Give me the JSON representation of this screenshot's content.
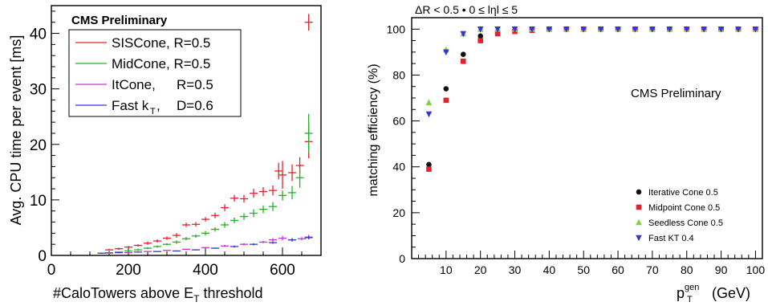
{
  "chart_data": [
    {
      "type": "scatter",
      "title": "",
      "xlabel": "#CaloTowers above E_T threshold",
      "xlabel_parts": [
        "#CaloTowers above E",
        "T",
        " threshold"
      ],
      "ylabel": "Avg. CPU time per event [ms]",
      "xlim": [
        0,
        700
      ],
      "ylim": [
        0,
        45
      ],
      "xticks": [
        "0",
        "200",
        "400",
        "600"
      ],
      "yticks": [
        "0",
        "10",
        "20",
        "30",
        "40"
      ],
      "grid": false,
      "legend_position": "top-left",
      "legend_header": "CMS Preliminary",
      "legend_entries": [
        {
          "label": "SISCone, R=0.5",
          "color": "#e8202a"
        },
        {
          "label": "MidCone, R=0.5",
          "color": "#22b122"
        },
        {
          "label": "ItCone, R=0.5",
          "label_parts": [
            "ItCone,",
            "R=0.5"
          ],
          "color": "#cc33cc"
        },
        {
          "label": "Fast kT, D=0.6",
          "label_parts": [
            "Fast k",
            "T",
            ",",
            "D=0.6"
          ],
          "color": "#3a33d6"
        }
      ],
      "series": [
        {
          "name": "SISCone, R=0.5",
          "color": "#e8202a",
          "x": [
            150,
            175,
            200,
            225,
            250,
            275,
            300,
            325,
            350,
            375,
            400,
            425,
            450,
            475,
            500,
            525,
            550,
            575,
            590,
            600,
            625,
            645,
            668
          ],
          "y": [
            1.0,
            1.2,
            1.5,
            1.8,
            2.2,
            2.6,
            3.1,
            3.6,
            5.5,
            5.6,
            6.5,
            7.2,
            8.6,
            10.3,
            10.2,
            11.2,
            11.5,
            11.7,
            15.2,
            14.5,
            14.9,
            16.2,
            20.5
          ],
          "yerr": [
            0.2,
            0.2,
            0.2,
            0.2,
            0.3,
            0.3,
            0.3,
            0.4,
            0.4,
            0.4,
            0.4,
            0.5,
            0.6,
            0.6,
            0.7,
            0.8,
            0.8,
            0.9,
            1.5,
            2.5,
            1.5,
            1.5,
            3.0
          ]
        },
        {
          "name": "MidCone, R=0.5",
          "color": "#22b122",
          "x": [
            150,
            175,
            200,
            225,
            250,
            275,
            300,
            325,
            350,
            375,
            400,
            425,
            450,
            475,
            500,
            525,
            550,
            575,
            600,
            625,
            645,
            668
          ],
          "y": [
            0.5,
            0.6,
            0.8,
            1.0,
            1.3,
            1.6,
            2.0,
            2.4,
            3.0,
            3.5,
            4.0,
            4.7,
            5.5,
            6.3,
            7.0,
            7.6,
            8.3,
            8.8,
            10.8,
            11.3,
            14.0,
            22.0
          ],
          "yerr": [
            0.1,
            0.1,
            0.1,
            0.2,
            0.2,
            0.2,
            0.2,
            0.3,
            0.3,
            0.3,
            0.4,
            0.4,
            0.5,
            0.5,
            0.6,
            0.7,
            0.7,
            0.8,
            0.9,
            1.2,
            1.8,
            3.5
          ]
        },
        {
          "name": "ItCone, R=0.5",
          "color": "#cc33cc",
          "x": [
            150,
            200,
            250,
            300,
            350,
            400,
            450,
            500,
            550,
            575,
            600,
            625,
            650,
            668
          ],
          "y": [
            0.4,
            0.5,
            0.7,
            0.9,
            1.1,
            1.4,
            1.7,
            2.0,
            2.4,
            2.8,
            3.1,
            2.8,
            3.0,
            3.3
          ],
          "yerr": [
            0.1,
            0.1,
            0.1,
            0.1,
            0.1,
            0.1,
            0.2,
            0.2,
            0.2,
            0.3,
            0.4,
            0.3,
            0.3,
            0.4
          ]
        },
        {
          "name": "Fast kT, D=0.6",
          "color": "#3a33d6",
          "x": [
            130,
            175,
            225,
            275,
            325,
            375,
            425,
            475,
            525,
            575,
            625,
            668
          ],
          "y": [
            0.4,
            0.5,
            0.6,
            0.7,
            0.8,
            1.0,
            1.3,
            1.6,
            2.0,
            2.3,
            2.8,
            3.2
          ],
          "yerr": [
            0.1,
            0.1,
            0.1,
            0.1,
            0.1,
            0.1,
            0.1,
            0.2,
            0.2,
            0.2,
            0.3,
            0.3
          ]
        }
      ],
      "extra_point": {
        "x": 668,
        "y": 42.0,
        "yerr": 1.5,
        "color": "#e8202a"
      }
    },
    {
      "type": "scatter",
      "title": "ΔR < 0.5 • 0 ≤ lηl ≤ 5",
      "xlabel": "p_T^gen (GeV)",
      "xlabel_parts": [
        "p",
        "gen",
        "T",
        " (GeV)"
      ],
      "ylabel": "matching efficiency (%)",
      "xlim": [
        0,
        102
      ],
      "ylim": [
        0,
        105
      ],
      "xticks": [
        "10",
        "20",
        "30",
        "40",
        "50",
        "60",
        "70",
        "80",
        "90",
        "100"
      ],
      "yticks": [
        "0",
        "20",
        "40",
        "60",
        "80",
        "100"
      ],
      "grid": false,
      "legend_position": "bottom-right",
      "annotation": "CMS Preliminary",
      "x_values": [
        5,
        10,
        15,
        20,
        25,
        30,
        35,
        40,
        45,
        50,
        55,
        60,
        65,
        70,
        75,
        80,
        85,
        90,
        95,
        100
      ],
      "series": [
        {
          "name": "Iterative Cone 0.5",
          "color": "#111111",
          "marker": "circle",
          "y": [
            41,
            74,
            89,
            97,
            99,
            99.5,
            100,
            100,
            100,
            100,
            100,
            100,
            100,
            100,
            100,
            100,
            100,
            100,
            100,
            100
          ]
        },
        {
          "name": "Midpoint Cone 0.5",
          "color": "#e8202a",
          "marker": "square",
          "y": [
            39,
            69,
            86,
            95,
            98,
            99,
            99.5,
            100,
            100,
            100,
            100,
            100,
            100,
            100,
            100,
            100,
            100,
            100,
            100,
            100
          ]
        },
        {
          "name": "Seedless Cone 0.5",
          "color": "#7fd43a",
          "marker": "triangle-up",
          "y": [
            68,
            91,
            98,
            100,
            100,
            100,
            100,
            100,
            100,
            100,
            100,
            100,
            100,
            100,
            100,
            100,
            100,
            100,
            100,
            100
          ]
        },
        {
          "name": "Fast KT 0.4",
          "color": "#3a33d6",
          "marker": "triangle-down",
          "y": [
            63,
            90,
            98,
            100,
            100,
            100,
            100,
            100,
            100,
            100,
            100,
            100,
            100,
            100,
            100,
            100,
            100,
            100,
            100,
            100
          ]
        }
      ]
    }
  ]
}
